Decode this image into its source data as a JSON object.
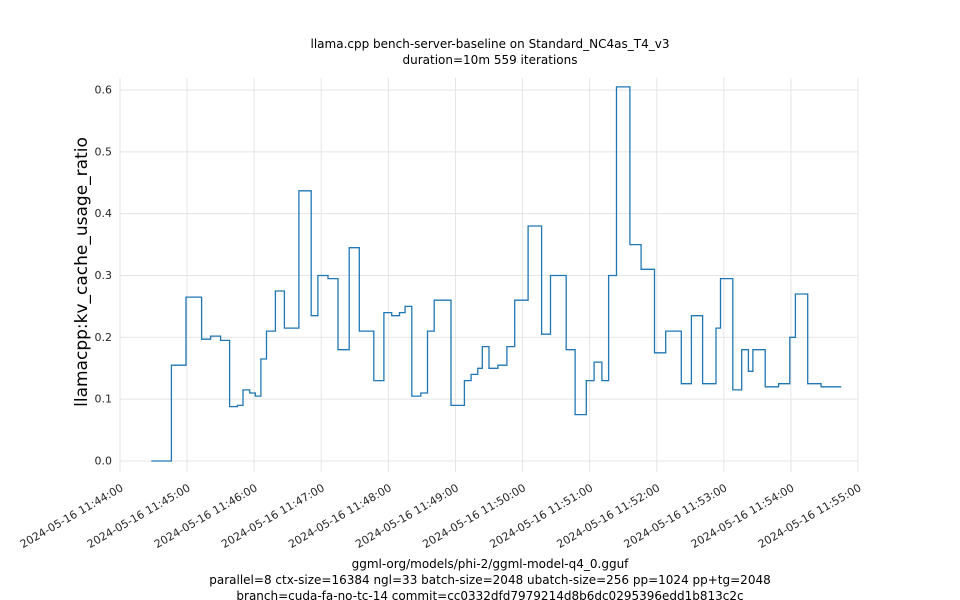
{
  "chart_data": {
    "type": "line",
    "title": "llama.cpp bench-server-baseline on Standard_NC4as_T4_v3",
    "subtitle": "duration=10m 559 iterations",
    "ylabel": "llamacpp:kv_cache_usage_ratio",
    "xlabel": "",
    "line_color": "#1f77b4",
    "grid_color": "#e5e5e5",
    "grid": true,
    "legend_position": "none",
    "ylim": [
      0.0,
      0.62
    ],
    "yticks": [
      0.0,
      0.1,
      0.2,
      0.3,
      0.4,
      0.5,
      0.6
    ],
    "ytick_labels": [
      "0.0",
      "0.1",
      "0.2",
      "0.3",
      "0.4",
      "0.5",
      "0.6"
    ],
    "x_range_seconds": [
      0,
      660
    ],
    "x_tick_interval_seconds": 60,
    "xtick_labels": [
      "2024-05-16 11:44:00",
      "2024-05-16 11:45:00",
      "2024-05-16 11:46:00",
      "2024-05-16 11:47:00",
      "2024-05-16 11:48:00",
      "2024-05-16 11:49:00",
      "2024-05-16 11:50:00",
      "2024-05-16 11:51:00",
      "2024-05-16 11:52:00",
      "2024-05-16 11:53:00",
      "2024-05-16 11:54:00",
      "2024-05-16 11:55:00"
    ],
    "points": [
      [
        28,
        0.0
      ],
      [
        46,
        0.155
      ],
      [
        59,
        0.265
      ],
      [
        73,
        0.197
      ],
      [
        81,
        0.202
      ],
      [
        90,
        0.195
      ],
      [
        98,
        0.088
      ],
      [
        105,
        0.09
      ],
      [
        110,
        0.115
      ],
      [
        116,
        0.11
      ],
      [
        121,
        0.105
      ],
      [
        126,
        0.165
      ],
      [
        131,
        0.21
      ],
      [
        139,
        0.275
      ],
      [
        147,
        0.215
      ],
      [
        160,
        0.437
      ],
      [
        171,
        0.235
      ],
      [
        177,
        0.3
      ],
      [
        186,
        0.295
      ],
      [
        195,
        0.18
      ],
      [
        205,
        0.345
      ],
      [
        214,
        0.21
      ],
      [
        227,
        0.13
      ],
      [
        236,
        0.24
      ],
      [
        243,
        0.235
      ],
      [
        250,
        0.24
      ],
      [
        255,
        0.25
      ],
      [
        261,
        0.105
      ],
      [
        269,
        0.11
      ],
      [
        275,
        0.21
      ],
      [
        281,
        0.26
      ],
      [
        296,
        0.09
      ],
      [
        308,
        0.13
      ],
      [
        314,
        0.14
      ],
      [
        320,
        0.15
      ],
      [
        324,
        0.185
      ],
      [
        330,
        0.15
      ],
      [
        338,
        0.155
      ],
      [
        346,
        0.185
      ],
      [
        353,
        0.26
      ],
      [
        365,
        0.38
      ],
      [
        377,
        0.205
      ],
      [
        385,
        0.3
      ],
      [
        399,
        0.18
      ],
      [
        407,
        0.075
      ],
      [
        417,
        0.13
      ],
      [
        424,
        0.16
      ],
      [
        431,
        0.13
      ],
      [
        437,
        0.3
      ],
      [
        444,
        0.605
      ],
      [
        456,
        0.35
      ],
      [
        466,
        0.31
      ],
      [
        478,
        0.175
      ],
      [
        488,
        0.21
      ],
      [
        502,
        0.125
      ],
      [
        511,
        0.235
      ],
      [
        521,
        0.125
      ],
      [
        533,
        0.215
      ],
      [
        537,
        0.295
      ],
      [
        548,
        0.115
      ],
      [
        556,
        0.18
      ],
      [
        562,
        0.145
      ],
      [
        566,
        0.18
      ],
      [
        577,
        0.12
      ],
      [
        589,
        0.125
      ],
      [
        599,
        0.2
      ],
      [
        604,
        0.27
      ],
      [
        615,
        0.125
      ],
      [
        627,
        0.12
      ],
      [
        645,
        0.12
      ]
    ],
    "footnotes": [
      "ggml-org/models/phi-2/ggml-model-q4_0.gguf",
      "parallel=8 ctx-size=16384 ngl=33 batch-size=2048 ubatch-size=256 pp=1024 pp+tg=2048",
      "branch=cuda-fa-no-tc-14 commit=cc0332dfd7979214d8b6dc0295396edd1b813c2c"
    ]
  }
}
